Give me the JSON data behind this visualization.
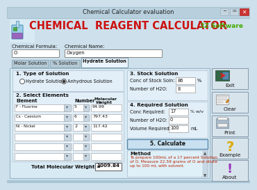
{
  "title_bar": "Chemical Calculator evaluation",
  "main_title": "CHEMICAL  REAGENT CALCULATOR",
  "brand": "3Z Software",
  "bg_main": "#cde0eb",
  "bg_content": "#ddedf5",
  "bg_section": "#e8f3f8",
  "bg_white": "#ffffff",
  "bg_titlebar": "#adc8d8",
  "bg_tab_active": "#e8f3fa",
  "bg_tab_inactive": "#b8ccd8",
  "bg_button": "#d8e4ec",
  "color_title_red": "#cc1111",
  "color_brand_green": "#44aa00",
  "color_black": "#111111",
  "color_dark": "#222222",
  "color_method_red": "#bb2200",
  "color_input_border": "#888888",
  "chem_formula_label": "Chemical Formula:",
  "chem_formula_val": "O",
  "chem_name_label": "Chemical Name:",
  "chem_name_val": "Oxygen",
  "tabs": [
    "Molar Solution",
    "% Solution",
    "Hydrate Solution"
  ],
  "active_tab": 2,
  "section1_title": "1. Type of Solution",
  "radio1": "Hydrate Solution",
  "radio2": "Anhydrous Solution",
  "section2_title": "2. Select Elements",
  "col_element": "Element",
  "col_number": "Number",
  "col_mw": "Molecular\nWeight",
  "elements": [
    [
      "F - Fluorine",
      "5",
      "94.99"
    ],
    [
      "Cs - Caesium",
      "6",
      "797.43"
    ],
    [
      "Ni - Nickel",
      "2",
      "117.42"
    ],
    [
      "",
      "",
      ""
    ],
    [
      "",
      "",
      ""
    ],
    [
      "",
      "",
      ""
    ]
  ],
  "total_mw_label": "Total Molecular Weight =",
  "total_mw_val": "1009.84",
  "section3_title": "3. Stock Solution",
  "conc_stock_label": "Conc of Stock Soln:",
  "conc_stock_val": "86",
  "conc_stock_unit": "%",
  "num_h2o_stock_label": "Number of H2O:",
  "num_h2o_stock_val": "8",
  "section4_title": "4. Required Solution",
  "conc_req_label": "Conc Required:",
  "conc_req_val": "17",
  "conc_req_unit": "% w/v",
  "num_h2o_req_label": "Number of H2O:",
  "num_h2o_req_val": "0",
  "vol_req_label": "Volume Required:",
  "vol_req_val": "100",
  "vol_req_unit": "mL",
  "calc_btn": "5. Calculate",
  "method_label": "Method",
  "method_text": "To prepare 100mL of a 17 percent Solution\nof O. Measure 22.59 grams of O and dilute\nup to 100 mL with solvent.",
  "btn_exit": "Exit",
  "btn_clear": "Clear",
  "btn_print": "Print",
  "btn_example": "Example",
  "btn_about": "About"
}
